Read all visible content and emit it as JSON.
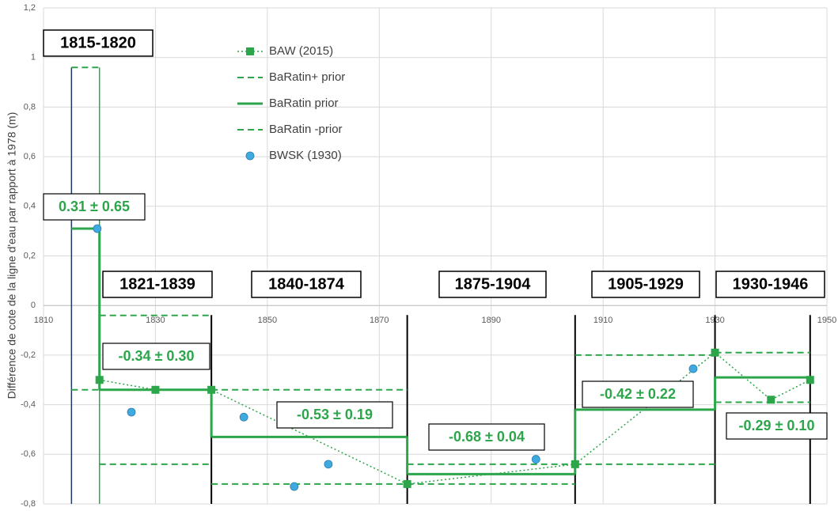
{
  "chart_data": {
    "type": "step",
    "y_label": "Différence de cote de la ligne d'eau par rapport à 1978 (m)",
    "xlim": [
      1810,
      1950
    ],
    "xticks": [
      1810,
      1830,
      1850,
      1870,
      1890,
      1910,
      1930,
      1950
    ],
    "ylim": [
      -0.8,
      1.2
    ],
    "yticks": [
      {
        "value": -0.8,
        "label": "-0,8"
      },
      {
        "value": -0.6,
        "label": "-0,6"
      },
      {
        "value": -0.4,
        "label": "-0,4"
      },
      {
        "value": -0.2,
        "label": "-0,2"
      },
      0,
      {
        "value": 0.2,
        "label": "0,2"
      },
      {
        "value": 0.4,
        "label": "0,4"
      },
      {
        "value": 0.6,
        "label": "0,6"
      },
      {
        "value": 0.8,
        "label": "0,8"
      },
      1,
      {
        "value": 1.2,
        "label": "1,2"
      }
    ],
    "grid": true,
    "legend": "top-center",
    "color": "#2ca54b",
    "series": [
      {
        "name": "BAW (2015)",
        "color": "#2ca54b",
        "x": [
          1820,
          1830,
          1840,
          1875,
          1905,
          1930,
          1940,
          1947
        ],
        "values": [
          -0.3,
          -0.34,
          -0.34,
          -0.72,
          -0.64,
          -0.19,
          -0.38,
          -0.3
        ]
      },
      {
        "name": "BaRatin+ prior",
        "color": "#2ca54b"
      },
      {
        "name": "BaRatin prior",
        "color": "#2ca54b"
      },
      {
        "name": "BaRatin -prior",
        "color": "#2ca54b"
      },
      {
        "name": "BWSK (1930)",
        "color": "#3fa9e0",
        "x": [
          1819.6,
          1825.7,
          1845.8,
          1854.8,
          1860.9,
          1898,
          1926.1
        ],
        "values": [
          0.31,
          -0.43,
          -0.45,
          -0.73,
          -0.64,
          -0.62,
          -0.255
        ]
      }
    ],
    "periods": [
      {
        "label": "1815-1820",
        "start": 1815,
        "end": 1820,
        "value": 0.31,
        "uncertainty": 0.65,
        "value_label": "0.31 ± 0.65"
      },
      {
        "label": "1821-1839",
        "start": 1820,
        "end": 1840,
        "value": -0.34,
        "uncertainty": 0.3,
        "value_label": "-0.34 ± 0.30"
      },
      {
        "label": "1840-1874",
        "start": 1840,
        "end": 1875,
        "value": -0.53,
        "uncertainty": 0.19,
        "value_label": "-0.53 ± 0.19"
      },
      {
        "label": "1875-1904",
        "start": 1875,
        "end": 1905,
        "value": -0.68,
        "uncertainty": 0.04,
        "value_label": "-0.68 ± 0.04"
      },
      {
        "label": "1905-1929",
        "start": 1905,
        "end": 1930,
        "value": -0.42,
        "uncertainty": 0.22,
        "value_label": "-0.42 ± 0.22"
      },
      {
        "label": "1930-1946",
        "start": 1930,
        "end": 1947,
        "value": -0.29,
        "uncertainty": 0.1,
        "value_label": "-0.29 ± 0.10"
      }
    ]
  }
}
